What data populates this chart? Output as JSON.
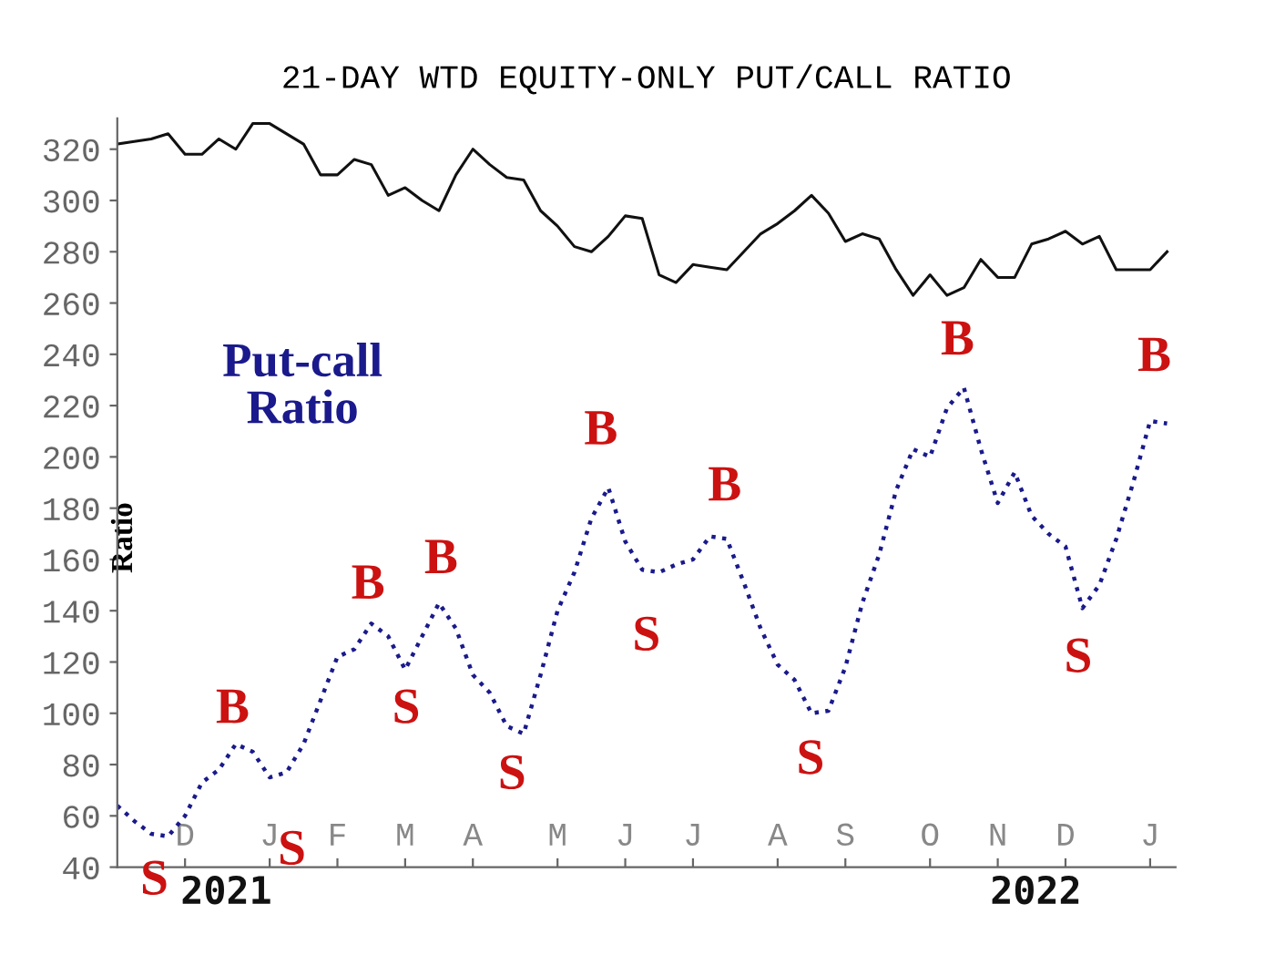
{
  "chart_data": {
    "type": "line",
    "title": "21-DAY WTD EQUITY-ONLY PUT/CALL RATIO",
    "ylabel": "Ratio",
    "categories": [
      null,
      null,
      null,
      null,
      "D",
      null,
      null,
      null,
      null,
      "J",
      null,
      null,
      null,
      "F",
      null,
      null,
      null,
      "M",
      null,
      null,
      null,
      "A",
      null,
      null,
      null,
      null,
      "M",
      null,
      null,
      null,
      "J",
      null,
      null,
      null,
      "J",
      null,
      null,
      null,
      null,
      "A",
      null,
      null,
      null,
      "S",
      null,
      null,
      null,
      null,
      "O",
      null,
      null,
      null,
      "N",
      null,
      null,
      null,
      "D",
      null,
      null,
      null,
      null,
      "J",
      null
    ],
    "series": [
      {
        "color": "#111111",
        "line_style": "solid",
        "values": [
          322,
          323,
          324,
          326,
          318,
          318,
          324,
          320,
          330,
          330,
          326,
          322,
          310,
          310,
          316,
          314,
          302,
          305,
          300,
          296,
          310,
          320,
          314,
          309,
          308,
          296,
          290,
          282,
          280,
          286,
          294,
          293,
          271,
          268,
          275,
          274,
          273,
          280,
          287,
          291,
          296,
          302,
          295,
          284,
          287,
          285,
          273,
          263,
          271,
          263,
          266,
          277,
          270,
          270,
          283,
          285,
          288,
          283,
          286,
          273,
          273,
          273,
          280
        ]
      },
      {
        "name": "Put-call Ratio",
        "color": "#1a1a8c",
        "line_style": "dotted",
        "values": [
          64,
          58,
          53,
          52,
          60,
          73,
          78,
          88,
          85,
          75,
          77,
          88,
          105,
          122,
          125,
          135,
          130,
          117,
          130,
          143,
          133,
          115,
          108,
          95,
          92,
          115,
          140,
          155,
          176,
          188,
          167,
          156,
          155,
          158,
          160,
          169,
          168,
          151,
          133,
          119,
          113,
          100,
          101,
          118,
          143,
          162,
          187,
          203,
          200,
          219,
          227,
          203,
          182,
          194,
          177,
          170,
          165,
          141,
          150,
          168,
          190,
          214,
          213
        ]
      }
    ],
    "ylim": [
      40,
      332
    ],
    "yticks": [
      40,
      60,
      80,
      100,
      120,
      140,
      160,
      180,
      200,
      220,
      240,
      260,
      280,
      300,
      320
    ],
    "grid": false,
    "legend": false,
    "annotations": [
      "S",
      "B",
      "S",
      "B",
      "S",
      "B",
      "S",
      "B",
      "S",
      "B",
      "S",
      "B",
      "S",
      "B",
      "2021",
      "2022"
    ]
  }
}
